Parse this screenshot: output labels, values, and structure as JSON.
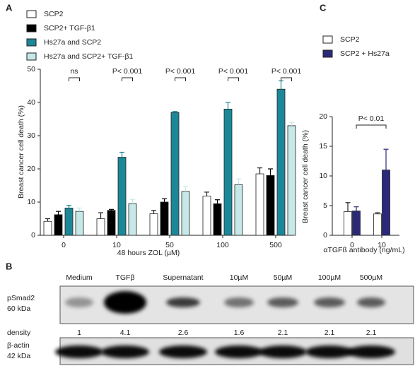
{
  "chart_data": [
    {
      "type": "bar",
      "panel": "A",
      "categories": [
        "0",
        "10",
        "50",
        "100",
        "500"
      ],
      "series": [
        {
          "name": "SCP2",
          "color": "#ffffff",
          "values": [
            4.2,
            5,
            6.5,
            11.8,
            18.5
          ],
          "errors": [
            0.8,
            1.8,
            1,
            1.2,
            1.8
          ]
        },
        {
          "name": "SCP2+ TGF-β1",
          "color": "#000000",
          "values": [
            6.2,
            7.5,
            10,
            9.5,
            18
          ],
          "errors": [
            1,
            0.3,
            1,
            1.2,
            2
          ]
        },
        {
          "name": "Hs27a and SCP2",
          "color": "#1b8797",
          "values": [
            8.2,
            23.5,
            37,
            38,
            44
          ],
          "errors": [
            0.8,
            1.5,
            0.3,
            2,
            2.5
          ]
        },
        {
          "name": "Hs27a and SCP2+ TGF-β1",
          "color": "#c6e8e8",
          "values": [
            7.2,
            9.5,
            13.2,
            15.2,
            33
          ],
          "errors": [
            1,
            1.3,
            1.5,
            1.8,
            1
          ]
        }
      ],
      "annotations": [
        "ns",
        "P< 0.001",
        "P< 0.001",
        "P< 0.001",
        "P< 0.001"
      ],
      "ylim": [
        0,
        50
      ],
      "yticks": [
        0,
        10,
        20,
        30,
        40,
        50
      ],
      "y_label": "Breast cancer cell death (%)",
      "x_label": "48 hours ZOL (µM)"
    },
    {
      "type": "bar",
      "panel": "C",
      "categories": [
        "0",
        "10"
      ],
      "series": [
        {
          "name": "SCP2",
          "color": "#ffffff",
          "values": [
            4,
            3.6
          ],
          "errors": [
            1.5,
            0.2
          ]
        },
        {
          "name": "SCP2 + Hs27a",
          "color": "#2a2a78",
          "values": [
            4.1,
            11
          ],
          "errors": [
            0.7,
            3.5
          ]
        }
      ],
      "annotations": [
        "P< 0.01"
      ],
      "ylim": [
        0,
        20
      ],
      "yticks": [
        0,
        5,
        10,
        15,
        20
      ],
      "y_label": "Breast cancer cell death (%)",
      "x_label": "αTGFß antibody (ng/mL)"
    }
  ],
  "blot": {
    "panel": "B",
    "lanes": [
      "Medium",
      "TGFβ",
      "Supernatant",
      "10µM",
      "50µM",
      "100µM",
      "500µM"
    ],
    "psmad_label": [
      "pSmad2",
      "60 kDa"
    ],
    "density_label": "density",
    "density": [
      "1",
      "4.1",
      "2.6",
      "1.6",
      "2.1",
      "2.1",
      "2.1"
    ],
    "actin_label": [
      "β-actin",
      "42 kDa"
    ]
  }
}
